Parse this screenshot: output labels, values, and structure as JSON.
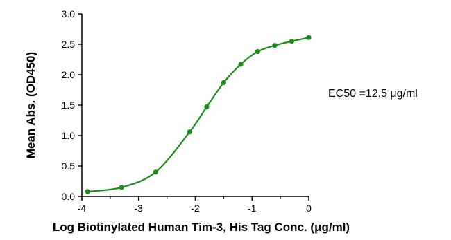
{
  "chart_data": {
    "type": "line",
    "title": "",
    "xlabel": "Log Biotinylated Human Tim-3, His Tag Conc. (μg/ml)",
    "ylabel": "Mean Abs. (OD450)",
    "xlim": [
      -4,
      0
    ],
    "ylim": [
      0,
      3.0
    ],
    "x_ticks": [
      "-4",
      "-3",
      "-2",
      "-1",
      "0"
    ],
    "y_ticks": [
      "0.0",
      "0.5",
      "1.0",
      "1.5",
      "2.0",
      "2.5",
      "3.0"
    ],
    "grid": false,
    "series": [
      {
        "color": "#1a8c1a",
        "x": [
          -3.9,
          -3.3,
          -2.7,
          -2.1,
          -1.8,
          -1.5,
          -1.2,
          -0.9,
          -0.6,
          -0.3,
          0.0
        ],
        "y": [
          0.08,
          0.15,
          0.4,
          1.06,
          1.47,
          1.87,
          2.17,
          2.38,
          2.48,
          2.55,
          2.61
        ]
      }
    ],
    "annotation": "EC50 =12.5 μg/ml"
  }
}
